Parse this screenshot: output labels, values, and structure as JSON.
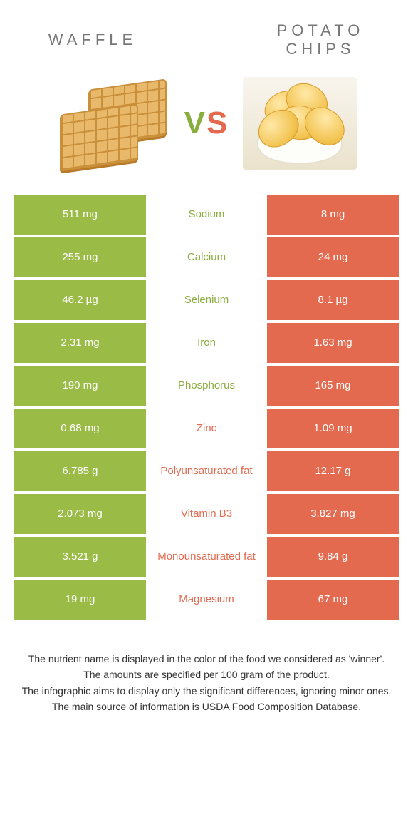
{
  "colors": {
    "left": "#9bbb47",
    "right": "#e36a4f",
    "left_text": "#8aad3f",
    "right_text": "#e36a4f"
  },
  "header": {
    "left_title": "Waffle",
    "right_title": "Potato Chips"
  },
  "vs": {
    "v": "V",
    "s": "S"
  },
  "rows": [
    {
      "label": "Sodium",
      "left": "511 mg",
      "right": "8 mg",
      "winner": "left"
    },
    {
      "label": "Calcium",
      "left": "255 mg",
      "right": "24 mg",
      "winner": "left"
    },
    {
      "label": "Selenium",
      "left": "46.2 µg",
      "right": "8.1 µg",
      "winner": "left"
    },
    {
      "label": "Iron",
      "left": "2.31 mg",
      "right": "1.63 mg",
      "winner": "left"
    },
    {
      "label": "Phosphorus",
      "left": "190 mg",
      "right": "165 mg",
      "winner": "left"
    },
    {
      "label": "Zinc",
      "left": "0.68 mg",
      "right": "1.09 mg",
      "winner": "right"
    },
    {
      "label": "Polyunsaturated fat",
      "left": "6.785 g",
      "right": "12.17 g",
      "winner": "right"
    },
    {
      "label": "Vitamin B3",
      "left": "2.073 mg",
      "right": "3.827 mg",
      "winner": "right"
    },
    {
      "label": "Monounsaturated fat",
      "left": "3.521 g",
      "right": "9.84 g",
      "winner": "right"
    },
    {
      "label": "Magnesium",
      "left": "19 mg",
      "right": "67 mg",
      "winner": "right"
    }
  ],
  "footer": {
    "line1": "The nutrient name is displayed in the color of the food we considered as 'winner'.",
    "line2": "The amounts are specified per 100 gram of the product.",
    "line3": "The infographic aims to display only the significant differences, ignoring minor ones.",
    "line4": "The main source of information is USDA Food Composition Database."
  }
}
